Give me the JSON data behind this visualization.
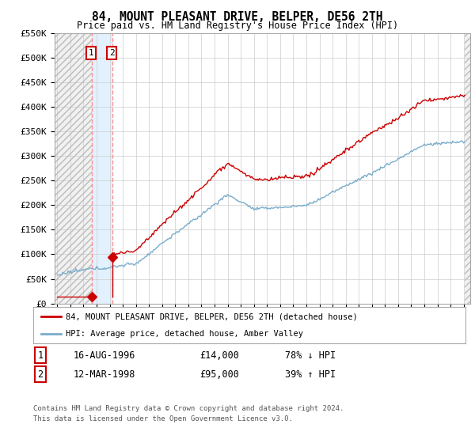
{
  "title": "84, MOUNT PLEASANT DRIVE, BELPER, DE56 2TH",
  "subtitle": "Price paid vs. HM Land Registry's House Price Index (HPI)",
  "legend_line1": "84, MOUNT PLEASANT DRIVE, BELPER, DE56 2TH (detached house)",
  "legend_line2": "HPI: Average price, detached house, Amber Valley",
  "footer1": "Contains HM Land Registry data © Crown copyright and database right 2024.",
  "footer2": "This data is licensed under the Open Government Licence v3.0.",
  "transaction1_date": "16-AUG-1996",
  "transaction1_price": "£14,000",
  "transaction1_pct": "78% ↓ HPI",
  "transaction2_date": "12-MAR-1998",
  "transaction2_price": "£95,000",
  "transaction2_pct": "39% ↑ HPI",
  "transaction1_x": 1996.62,
  "transaction1_y": 14000,
  "transaction2_x": 1998.2,
  "transaction2_y": 95000,
  "ylim": [
    0,
    550000
  ],
  "xlim": [
    1993.8,
    2025.5
  ],
  "yticks": [
    0,
    50000,
    100000,
    150000,
    200000,
    250000,
    300000,
    350000,
    400000,
    450000,
    500000,
    550000
  ],
  "ytick_labels": [
    "£0",
    "£50K",
    "£100K",
    "£150K",
    "£200K",
    "£250K",
    "£300K",
    "£350K",
    "£400K",
    "£450K",
    "£500K",
    "£550K"
  ],
  "red_color": "#cc0000",
  "blue_color": "#7aadcc",
  "highlight_color": "#ddeeff",
  "hatch_color": "#bbbbbb",
  "bg_color": "#ffffff",
  "grid_color": "#cccccc",
  "box_color": "#cc0000"
}
